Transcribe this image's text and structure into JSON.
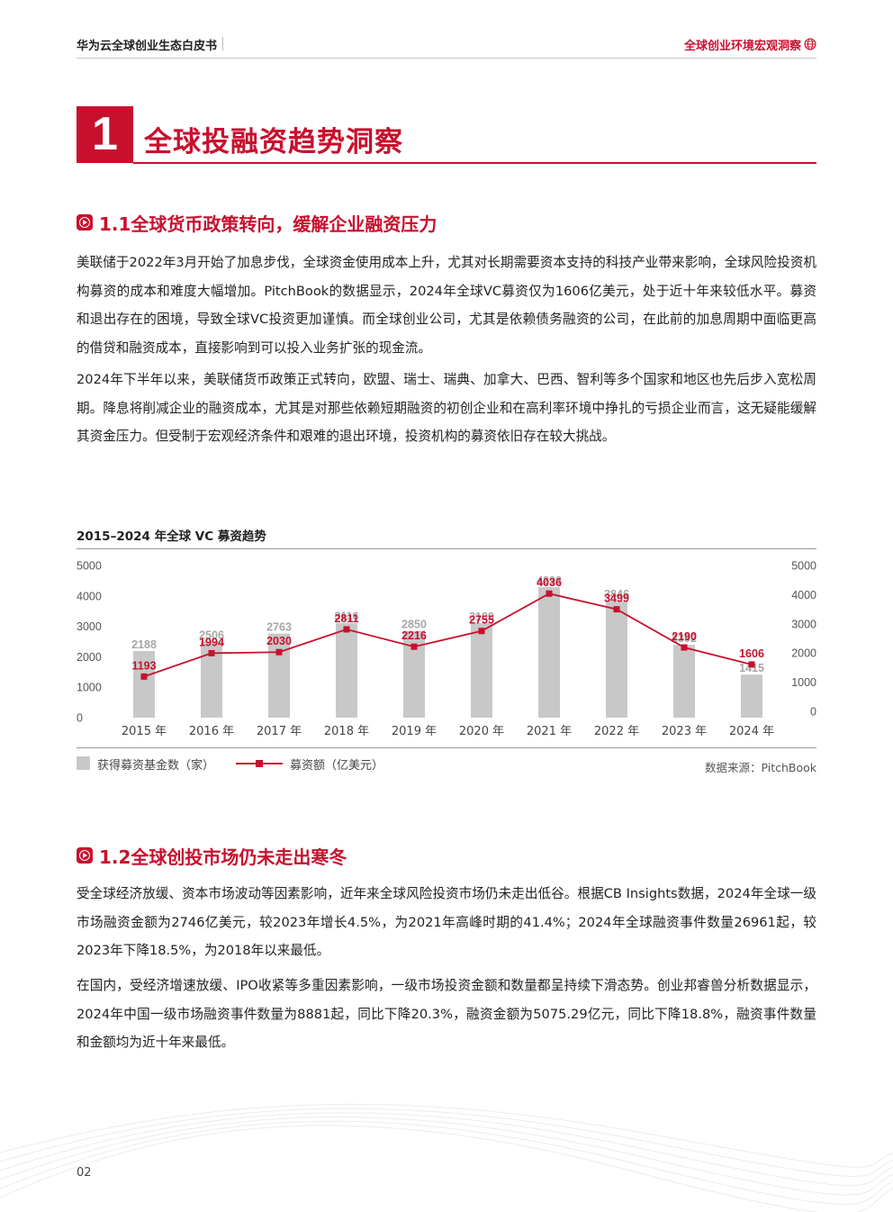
{
  "header": {
    "left_title": "华为云全球创业生态白皮书",
    "right_title": "全球创业环境宏观洞察",
    "right_icon": "globe-icon"
  },
  "chapter": {
    "number": "1",
    "title": "全球投融资趋势洞察"
  },
  "section1": {
    "title": "1.1全球货币政策转向，缓解企业融资压力",
    "paragraphs": [
      "美联储于2022年3月开始了加息步伐，全球资金使用成本上升，尤其对长期需要资本支持的科技产业带来影响，全球风险投资机构募资的成本和难度大幅增加。PitchBook的数据显示，2024年全球VC募资仅为1606亿美元，处于近十年来较低水平。募资和退出存在的困境，导致全球VC投资更加谨慎。而全球创业公司，尤其是依赖债务融资的公司，在此前的加息周期中面临更高的借贷和融资成本，直接影响到可以投入业务扩张的现金流。",
      "2024年下半年以来，美联储货币政策正式转向，欧盟、瑞士、瑞典、加拿大、巴西、智利等多个国家和地区也先后步入宽松周期。降息将削减企业的融资成本，尤其是对那些依赖短期融资的初创企业和在高利率环境中挣扎的亏损企业而言，这无疑能缓解其资金压力。但受制于宏观经济条件和艰难的退出环境，投资机构的募资依旧存在较大挑战。"
    ]
  },
  "chart_data": {
    "type": "bar",
    "title": "2015–2024 年全球 VC 募资趋势",
    "categories": [
      "2015 年",
      "2016 年",
      "2017 年",
      "2018 年",
      "2019 年",
      "2020 年",
      "2021 年",
      "2022 年",
      "2023 年",
      "2024 年"
    ],
    "series": [
      {
        "name": "获得募资基金数（家）",
        "type": "bar",
        "color": "#c8c8c8",
        "label_color": "#a6a6a6",
        "values": [
          2188,
          2506,
          2763,
          3116,
          2850,
          3109,
          4293,
          3846,
          2392,
          1415
        ]
      },
      {
        "name": "募资额（亿美元）",
        "type": "line",
        "color": "#c8102e",
        "values": [
          1193,
          1994,
          2030,
          2811,
          2216,
          2755,
          4036,
          3499,
          2190,
          1606
        ]
      }
    ],
    "left_axis": {
      "ticks": [
        "0",
        "1000",
        "2000",
        "3000",
        "4000",
        "5000"
      ],
      "range": [
        0,
        5000
      ]
    },
    "right_axis": {
      "ticks": [
        "0",
        "1000",
        "2000",
        "3000",
        "4000",
        "5000"
      ],
      "range": [
        0,
        5000
      ]
    },
    "grid": false,
    "legend_position": "bottom-left",
    "source": "数据来源：PitchBook"
  },
  "section2": {
    "title": "1.2全球创投市场仍未走出寒冬",
    "paragraphs": [
      "受全球经济放缓、资本市场波动等因素影响，近年来全球风险投资市场仍未走出低谷。根据CB Insights数据，2024年全球一级市场融资金额为2746亿美元，较2023年增长4.5%，为2021年高峰时期的41.4%；2024年全球融资事件数量26961起，较2023年下降18.5%，为2018年以来最低。",
      "在国内，受经济增速放缓、IPO收紧等多重因素影响，一级市场投资金额和数量都呈持续下滑态势。创业邦睿兽分析数据显示，2024年中国一级市场融资事件数量为8881起，同比下降20.3%，融资金额为5075.29亿元，同比下降18.8%，融资事件数量和金额均为近十年来最低。"
    ]
  },
  "footer": {
    "page_number": "02"
  },
  "colors": {
    "accent": "#c8102e",
    "bar": "#c8c8c8"
  }
}
